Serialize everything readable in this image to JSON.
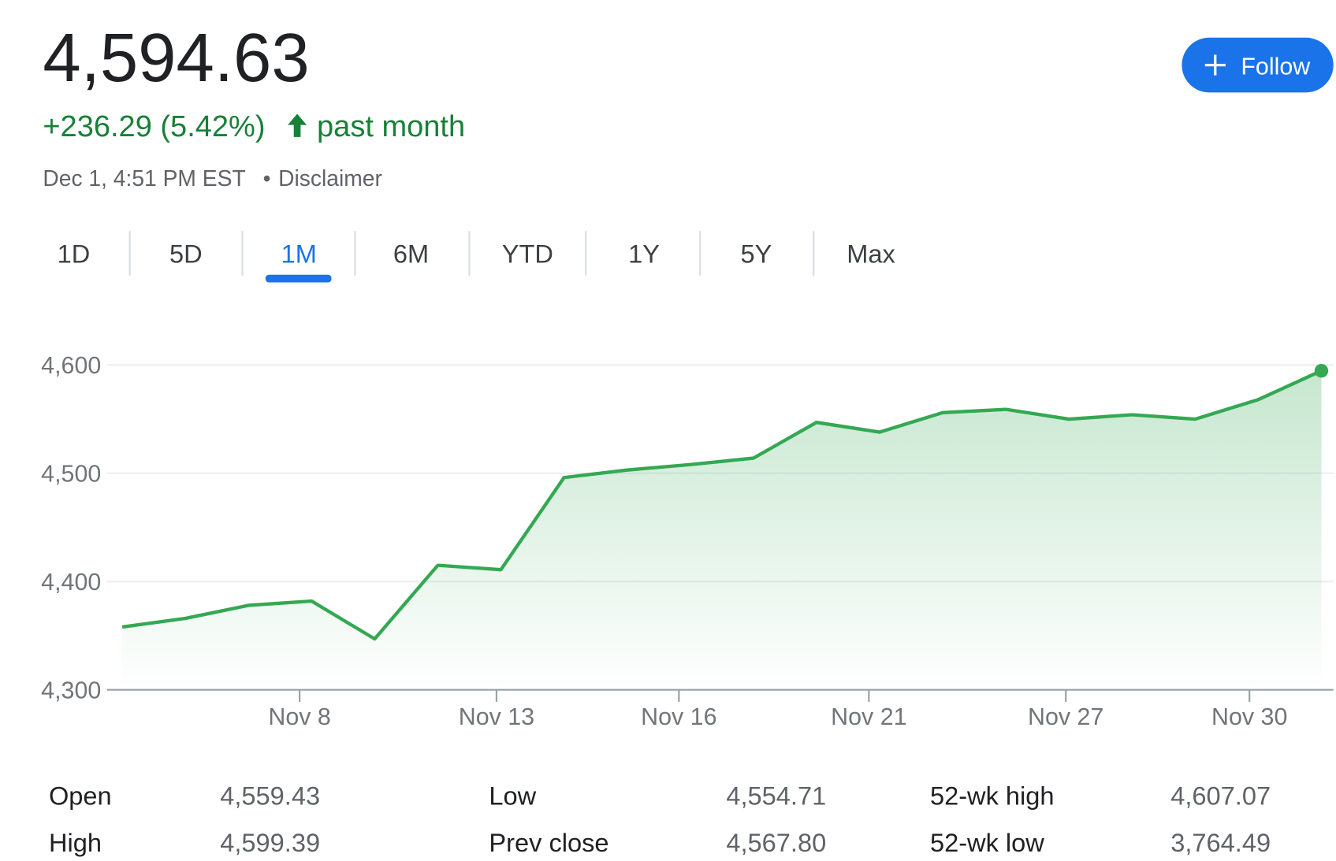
{
  "header": {
    "price": "4,594.63",
    "change": "+236.29 (5.42%)",
    "period": "past month",
    "timestamp": "Dec 1, 4:51 PM EST",
    "disclaimer": "Disclaimer",
    "follow": "Follow"
  },
  "ranges": [
    "1D",
    "5D",
    "1M",
    "6M",
    "YTD",
    "1Y",
    "5Y",
    "Max"
  ],
  "selected_range": 2,
  "chart_data": {
    "type": "area",
    "color": "#34a853",
    "values": [
      4358,
      4366,
      4378,
      4382,
      4347,
      4415,
      4411,
      4496,
      4503,
      4508,
      4514,
      4547,
      4538,
      4556,
      4559,
      4550,
      4554,
      4550,
      4568,
      4594.63
    ],
    "xlim": [
      -0.24,
      19.19
    ],
    "xticks": [
      {
        "value": 2.81,
        "label": "Nov 8"
      },
      {
        "value": 5.93,
        "label": "Nov 13"
      },
      {
        "value": 8.82,
        "label": "Nov 16"
      },
      {
        "value": 11.83,
        "label": "Nov 21"
      },
      {
        "value": 14.95,
        "label": "Nov 27"
      },
      {
        "value": 17.86,
        "label": "Nov 30"
      }
    ],
    "ylim": [
      4300,
      4613
    ],
    "yticks": [
      {
        "value": 4300,
        "label": "4,300"
      },
      {
        "value": 4400,
        "label": "4,400"
      },
      {
        "value": 4500,
        "label": "4,500"
      },
      {
        "value": 4600,
        "label": "4,600"
      }
    ],
    "grid": true
  },
  "stats": [
    [
      [
        "Open",
        "4,559.43"
      ],
      [
        "Low",
        "4,554.71"
      ],
      [
        "52-wk high",
        "4,607.07"
      ]
    ],
    [
      [
        "High",
        "4,599.39"
      ],
      [
        "Prev close",
        "4,567.80"
      ],
      [
        "52-wk low",
        "3,764.49"
      ]
    ]
  ]
}
